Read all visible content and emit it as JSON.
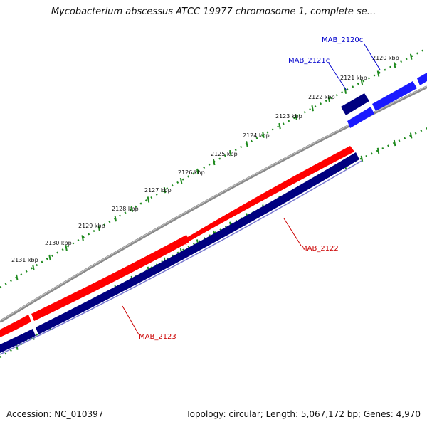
{
  "title": "Mycobacterium abscessus ATCC 19977 chromosome 1, complete se...",
  "footer": {
    "accession": "Accession: NC_010397",
    "summary": "Topology: circular; Length: 5,067,172 bp; Genes: 4,970"
  },
  "colors": {
    "backbone": "#8a8a8a",
    "forward_gene": "#ff0000",
    "reverse_gene": "#000080",
    "forward_other": "#1a1aff",
    "tick": "#1e8a1e",
    "label_blue": "#0000cc",
    "label_red": "#cc0000"
  },
  "ticks": [
    {
      "label": "2120 kbp"
    },
    {
      "label": "2121 kbp"
    },
    {
      "label": "2122 kbp"
    },
    {
      "label": "2123 kbp"
    },
    {
      "label": "2124 kbp"
    },
    {
      "label": "2125 kbp"
    },
    {
      "label": "2126 kbp"
    },
    {
      "label": "2127 kbp"
    },
    {
      "label": "2128 kbp"
    },
    {
      "label": "2129 kbp"
    },
    {
      "label": "2130 kbp"
    },
    {
      "label": "2131 kbp"
    }
  ],
  "genes": [
    {
      "label": "MAB_2120c",
      "color": "label_blue"
    },
    {
      "label": "MAB_2121c",
      "color": "label_blue"
    },
    {
      "label": "MAB_2122",
      "color": "label_red"
    },
    {
      "label": "MAB_2123",
      "color": "label_red"
    }
  ]
}
